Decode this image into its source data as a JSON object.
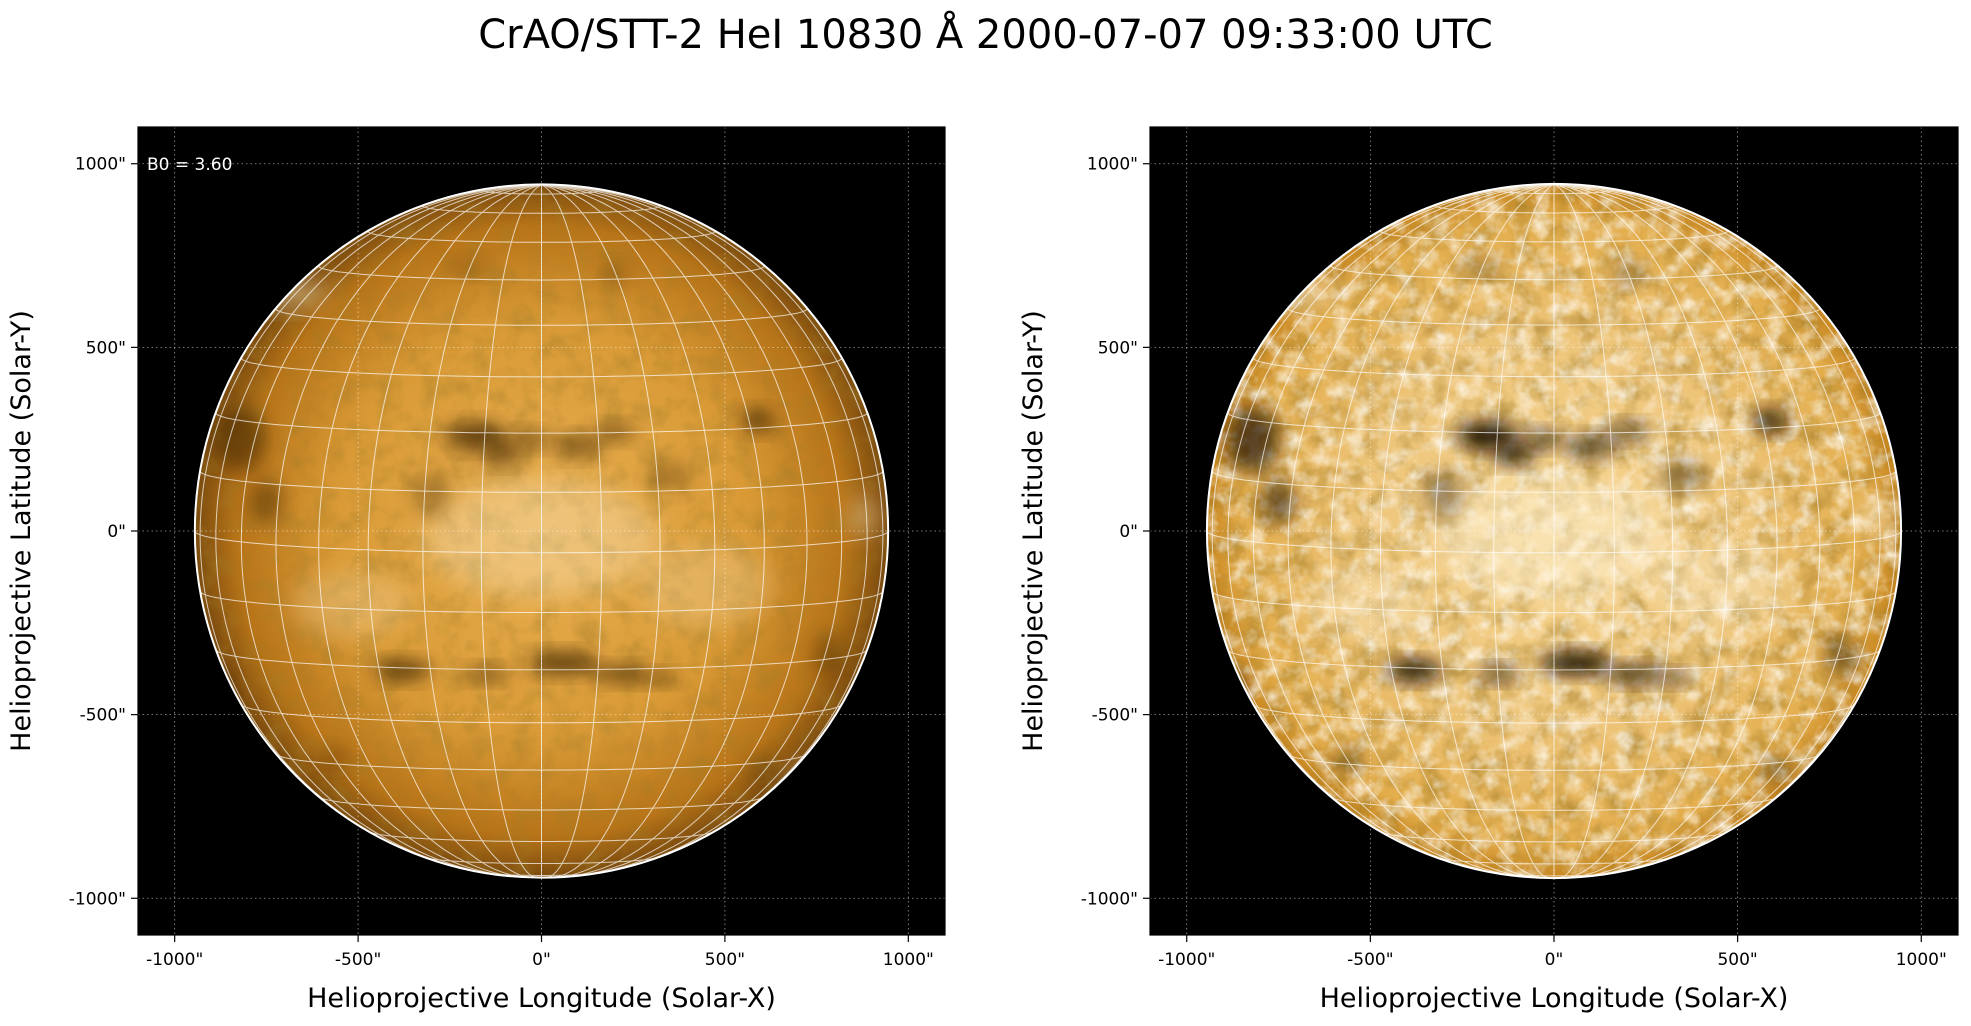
{
  "title": "CrAO/STT-2 HeI 10830 Å 2000-07-07 09:33:00 UTC",
  "panels": [
    {
      "id": "left",
      "annotation": "B0 = 3.60",
      "xlabel": "Helioprojective Longitude (Solar-X)",
      "ylabel": "Helioprojective Latitude (Solar-Y)",
      "xticks": [
        "-1000\"",
        "-500\"",
        "0\"",
        "500\"",
        "1000\""
      ],
      "yticks": [
        "1000\"",
        "500\"",
        "0\"",
        "-500\"",
        "-1000\""
      ],
      "variant": "raw"
    },
    {
      "id": "right",
      "annotation": "",
      "xlabel": "Helioprojective Longitude (Solar-X)",
      "ylabel": "Helioprojective Latitude (Solar-Y)",
      "xticks": [
        "-1000\"",
        "-500\"",
        "0\"",
        "500\"",
        "1000\""
      ],
      "yticks": [
        "1000\"",
        "500\"",
        "0\"",
        "-500\"",
        "-1000\""
      ],
      "variant": "enhanced"
    }
  ],
  "axis": {
    "xlim": [
      -1100,
      1100
    ],
    "ylim": [
      -1100,
      1100
    ],
    "solar_radius_arcsec": 945,
    "b0_deg": 3.6
  },
  "colors": {
    "disk_core": "#e6a94a",
    "disk_limb": "#7a4a0e",
    "background": "#000000",
    "grid": "#ffffff"
  }
}
